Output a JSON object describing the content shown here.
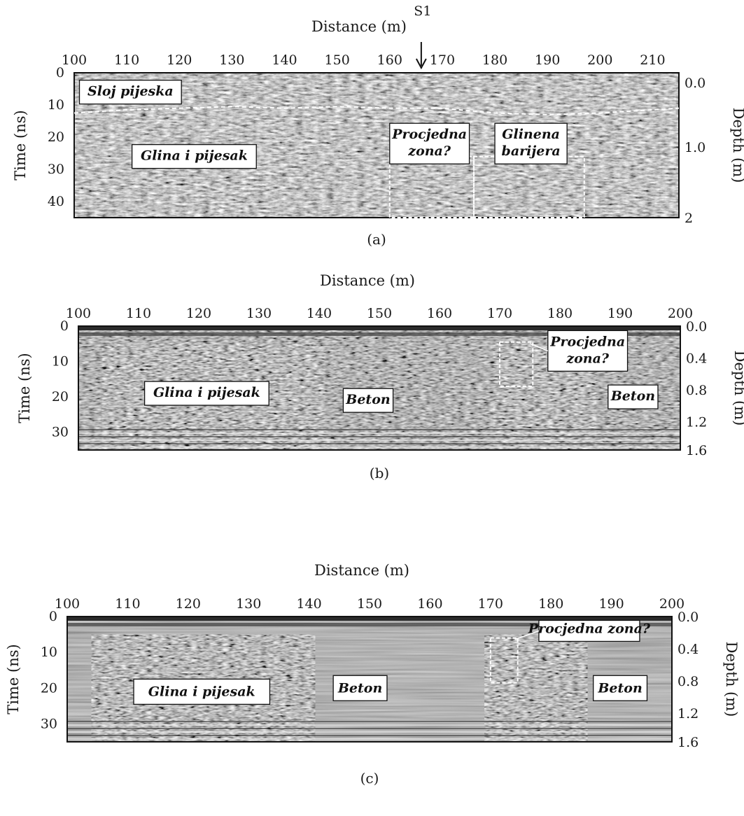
{
  "chart_data": [
    {
      "type": "heatmap",
      "caption": "(a)",
      "xlabel": "Distance (m)",
      "ylabel_left": "Time (ns)",
      "ylabel_right": "Depth (m)",
      "xlim": [
        100,
        215
      ],
      "x_ticks": [
        100,
        110,
        120,
        130,
        140,
        150,
        160,
        170,
        180,
        190,
        200,
        210
      ],
      "ylim": [
        0,
        45
      ],
      "y_ticks": [
        0,
        10,
        20,
        30,
        40
      ],
      "right_ticks": [
        {
          "label": "0.0",
          "at_time": 3
        },
        {
          "label": "1.0",
          "at_time": 23
        },
        {
          "label": "2",
          "at_time": 45
        }
      ],
      "marker": {
        "label": "S1",
        "x": 166
      },
      "boundary_line": {
        "x": [
          100,
          110,
          120,
          130,
          140,
          150,
          160,
          170,
          180,
          190,
          200,
          215
        ],
        "y": [
          12.5,
          11.5,
          11,
          10.5,
          11,
          10.5,
          11,
          11,
          12.5,
          13,
          12.5,
          11
        ]
      },
      "annotations": [
        {
          "text": "Sloj pijeska",
          "x": 101,
          "y": 6
        },
        {
          "text": "Glina i pijesak",
          "x": 111,
          "y": 26
        },
        {
          "text": "Procjedna zona?",
          "lines": [
            "Procjedna",
            "zona?"
          ],
          "x": 160,
          "y": 22
        },
        {
          "text": "Glinena barijera",
          "lines": [
            "Glinena",
            "barijera"
          ],
          "x": 180,
          "y": 22
        }
      ],
      "zones": [
        {
          "x": [
            160,
            176
          ],
          "y": [
            26,
            45
          ]
        },
        {
          "x": [
            176,
            197
          ],
          "y": [
            26,
            45
          ]
        }
      ]
    },
    {
      "type": "heatmap",
      "caption": "(b)",
      "xlabel": "Distance (m)",
      "ylabel_left": "Time (ns)",
      "ylabel_right": "Depth (m)",
      "xlim": [
        100,
        200
      ],
      "x_ticks": [
        100,
        110,
        120,
        130,
        140,
        150,
        160,
        170,
        180,
        190,
        200
      ],
      "ylim": [
        0,
        35
      ],
      "y_ticks": [
        0,
        10,
        20,
        30
      ],
      "right_ticks": [
        {
          "label": "0.0",
          "at_time": 0
        },
        {
          "label": "0.4",
          "at_time": 9
        },
        {
          "label": "0.8",
          "at_time": 18
        },
        {
          "label": "1.2",
          "at_time": 27
        },
        {
          "label": "1.6",
          "at_time": 35
        }
      ],
      "annotations": [
        {
          "text": "Glina i pijesak",
          "x": 111,
          "y": 19
        },
        {
          "text": "Beton",
          "x": 144,
          "y": 21
        },
        {
          "text": "Procjedna zona?",
          "lines": [
            "Procjedna",
            "zona?"
          ],
          "x": 178,
          "y": 7
        },
        {
          "text": "Beton",
          "x": 188,
          "y": 20
        }
      ],
      "zones": [
        {
          "x": [
            170,
            175.5
          ],
          "y": [
            4.5,
            17
          ]
        }
      ]
    },
    {
      "type": "heatmap",
      "caption": "(c)",
      "xlabel": "Distance (m)",
      "ylabel_left": "Time (ns)",
      "ylabel_right": "Depth (m)",
      "xlim": [
        100,
        200
      ],
      "x_ticks": [
        100,
        110,
        120,
        130,
        140,
        150,
        160,
        170,
        180,
        190,
        200
      ],
      "ylim": [
        0,
        35
      ],
      "y_ticks": [
        0,
        10,
        20,
        30
      ],
      "right_ticks": [
        {
          "label": "0.0",
          "at_time": 0
        },
        {
          "label": "0.4",
          "at_time": 9
        },
        {
          "label": "0.8",
          "at_time": 18
        },
        {
          "label": "1.2",
          "at_time": 27
        },
        {
          "label": "1.6",
          "at_time": 35
        }
      ],
      "annotations": [
        {
          "text": "Glina i pijesak",
          "x": 111,
          "y": 21
        },
        {
          "text": "Beton",
          "x": 144,
          "y": 20
        },
        {
          "text": "Procjedna zona?",
          "x": 178,
          "y": 4
        },
        {
          "text": "Beton",
          "x": 187,
          "y": 20
        }
      ],
      "zones": [
        {
          "x": [
            170,
            174.5
          ],
          "y": [
            6,
            18.5
          ]
        }
      ]
    }
  ]
}
